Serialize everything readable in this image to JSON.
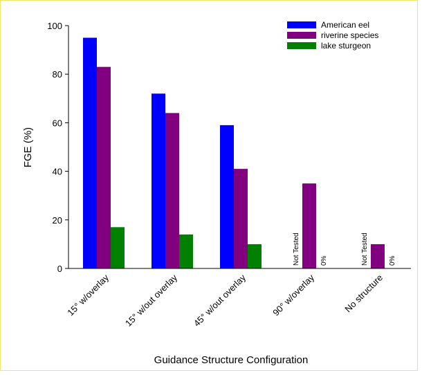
{
  "chart_data": {
    "type": "bar",
    "xlabel": "Guidance Structure Configuration",
    "ylabel": "FGE (%)",
    "ylim": [
      0,
      100
    ],
    "yticks": [
      0,
      20,
      40,
      60,
      80,
      100
    ],
    "grid": false,
    "legend_position": "top-right",
    "categories": [
      "15° w/overlay",
      "15° w/out overlay",
      "45° w/out overlay",
      "90° w/overlay",
      "No structure"
    ],
    "series": [
      {
        "name": "American eel",
        "color": "#0000ff",
        "values": [
          95,
          72,
          59,
          null,
          null
        ]
      },
      {
        "name": "riverine species",
        "color": "#800080",
        "values": [
          83,
          64,
          41,
          35,
          10
        ]
      },
      {
        "name": "lake sturgeon",
        "color": "#008000",
        "values": [
          17,
          14,
          10,
          0,
          0
        ]
      }
    ],
    "annotations": [
      {
        "category_index": 3,
        "series_index": 0,
        "text": "Not Tested"
      },
      {
        "category_index": 3,
        "series_index": 2,
        "text": "0%"
      },
      {
        "category_index": 4,
        "series_index": 0,
        "text": "Not Tested"
      },
      {
        "category_index": 4,
        "series_index": 2,
        "text": "0%"
      }
    ]
  }
}
